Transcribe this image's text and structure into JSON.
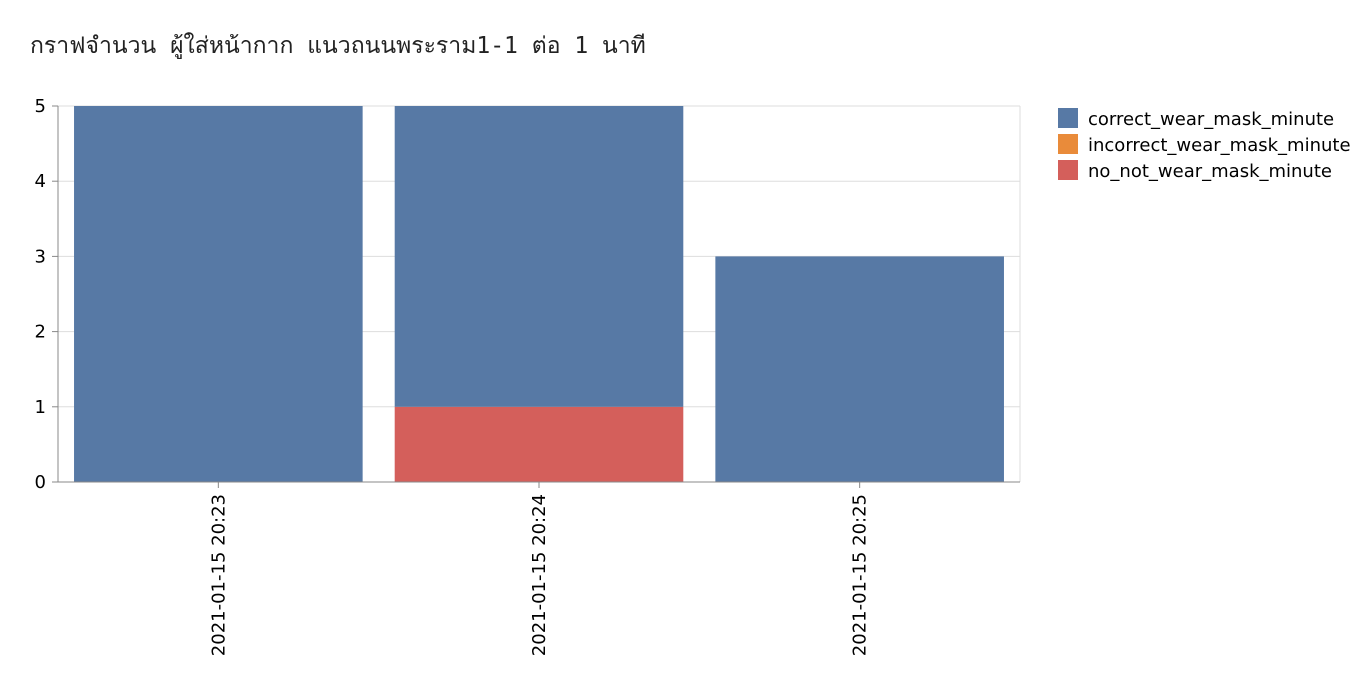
{
  "chart_data": {
    "type": "bar",
    "stacked": true,
    "title": "กราฟจำนวน ผู้ใส่หน้ากาก แนวถนนพระราม1-1 ต่อ 1 นาที",
    "xlabel": "",
    "ylabel": "",
    "categories": [
      "2021-01-15 20:23",
      "2021-01-15 20:24",
      "2021-01-15 20:25"
    ],
    "series": [
      {
        "name": "no_not_wear_mask_minute",
        "color": "#d45f5b",
        "values": [
          0,
          1,
          0
        ]
      },
      {
        "name": "incorrect_wear_mask_minute",
        "color": "#e98b3a",
        "values": [
          0,
          0,
          0
        ]
      },
      {
        "name": "correct_wear_mask_minute",
        "color": "#5779a5",
        "values": [
          5,
          4,
          3
        ]
      }
    ],
    "legend_order": [
      "correct_wear_mask_minute",
      "incorrect_wear_mask_minute",
      "no_not_wear_mask_minute"
    ],
    "ylim": [
      0,
      5
    ],
    "yticks": [
      0,
      1,
      2,
      3,
      4,
      5
    ],
    "grid": true,
    "legend_position": "top-right"
  }
}
